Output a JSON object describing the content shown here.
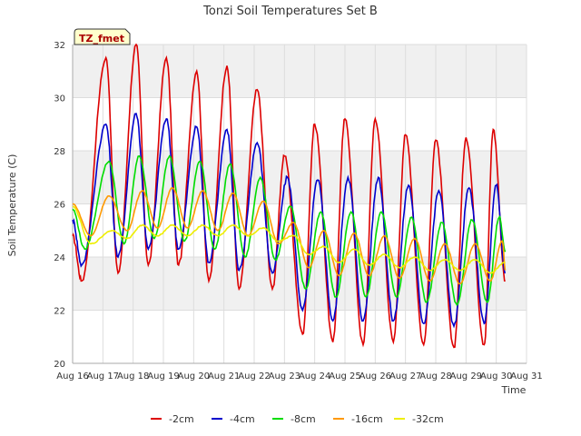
{
  "chart_data": {
    "type": "line",
    "title": "Tonzi Soil Temperatures Set B",
    "xlabel": "Time",
    "ylabel": "Soil Temperature (C)",
    "annotation": "TZ_fmet",
    "xlim": [
      16,
      31
    ],
    "ylim": [
      20,
      32
    ],
    "x_ticks": [
      16,
      17,
      18,
      19,
      20,
      21,
      22,
      23,
      24,
      25,
      26,
      27,
      28,
      29,
      30,
      31
    ],
    "x_tick_labels": [
      "Aug 16",
      "Aug 17",
      "Aug 18",
      "Aug 19",
      "Aug 20",
      "Aug 21",
      "Aug 22",
      "Aug 23",
      "Aug 24",
      "Aug 25",
      "Aug 26",
      "Aug 27",
      "Aug 28",
      "Aug 29",
      "Aug 30",
      "Aug 31"
    ],
    "y_ticks": [
      20,
      22,
      24,
      26,
      28,
      30,
      32
    ],
    "grid": true,
    "legend_position": "bottom",
    "series": [
      {
        "name": "-2cm",
        "color": "#dd0000",
        "peaks": [
          [
            17.1,
            31.5
          ],
          [
            18.1,
            32.0
          ],
          [
            19.1,
            31.5
          ],
          [
            20.1,
            31.0
          ],
          [
            21.1,
            31.2
          ],
          [
            22.1,
            30.3
          ],
          [
            23.0,
            27.8
          ],
          [
            24.0,
            29.0
          ],
          [
            25.0,
            29.2
          ],
          [
            26.0,
            29.2
          ],
          [
            27.0,
            28.6
          ],
          [
            28.0,
            28.4
          ],
          [
            29.0,
            28.5
          ],
          [
            29.9,
            28.8
          ]
        ],
        "troughs": [
          [
            16.0,
            24.8
          ],
          [
            16.3,
            23.1
          ],
          [
            17.5,
            23.4
          ],
          [
            18.5,
            23.7
          ],
          [
            19.5,
            23.7
          ],
          [
            20.5,
            23.1
          ],
          [
            21.5,
            22.8
          ],
          [
            22.6,
            22.8
          ],
          [
            23.6,
            21.1
          ],
          [
            24.6,
            20.8
          ],
          [
            25.6,
            20.7
          ],
          [
            26.6,
            20.8
          ],
          [
            27.6,
            20.7
          ],
          [
            28.6,
            20.6
          ],
          [
            29.6,
            20.7
          ],
          [
            30.3,
            23.1
          ]
        ]
      },
      {
        "name": "-4cm",
        "color": "#0000cc",
        "peaks": [
          [
            17.1,
            29.0
          ],
          [
            18.1,
            29.4
          ],
          [
            19.1,
            29.2
          ],
          [
            20.1,
            28.9
          ],
          [
            21.1,
            28.8
          ],
          [
            22.1,
            28.3
          ],
          [
            23.1,
            27.0
          ],
          [
            24.1,
            26.9
          ],
          [
            25.1,
            27.0
          ],
          [
            26.1,
            27.0
          ],
          [
            27.1,
            26.7
          ],
          [
            28.1,
            26.5
          ],
          [
            29.1,
            26.6
          ],
          [
            30.0,
            26.7
          ]
        ],
        "troughs": [
          [
            16.0,
            25.4
          ],
          [
            16.3,
            23.7
          ],
          [
            17.5,
            24.0
          ],
          [
            18.5,
            24.3
          ],
          [
            19.5,
            24.3
          ],
          [
            20.5,
            23.8
          ],
          [
            21.5,
            23.5
          ],
          [
            22.6,
            23.4
          ],
          [
            23.6,
            22.0
          ],
          [
            24.6,
            21.6
          ],
          [
            25.6,
            21.6
          ],
          [
            26.6,
            21.6
          ],
          [
            27.6,
            21.5
          ],
          [
            28.6,
            21.4
          ],
          [
            29.6,
            21.5
          ],
          [
            30.3,
            23.4
          ]
        ]
      },
      {
        "name": "-8cm",
        "color": "#00dd00",
        "peaks": [
          [
            17.2,
            27.6
          ],
          [
            18.2,
            27.8
          ],
          [
            19.2,
            27.8
          ],
          [
            20.2,
            27.6
          ],
          [
            21.2,
            27.5
          ],
          [
            22.2,
            27.0
          ],
          [
            23.2,
            25.9
          ],
          [
            24.2,
            25.7
          ],
          [
            25.2,
            25.7
          ],
          [
            26.2,
            25.7
          ],
          [
            27.2,
            25.5
          ],
          [
            28.2,
            25.3
          ],
          [
            29.2,
            25.4
          ],
          [
            30.1,
            25.5
          ]
        ],
        "troughs": [
          [
            16.0,
            25.8
          ],
          [
            16.4,
            24.3
          ],
          [
            17.7,
            24.5
          ],
          [
            18.7,
            24.7
          ],
          [
            19.7,
            24.6
          ],
          [
            20.7,
            24.3
          ],
          [
            21.7,
            24.0
          ],
          [
            22.7,
            23.9
          ],
          [
            23.7,
            22.8
          ],
          [
            24.7,
            22.5
          ],
          [
            25.7,
            22.5
          ],
          [
            26.7,
            22.5
          ],
          [
            27.7,
            22.3
          ],
          [
            28.7,
            22.2
          ],
          [
            29.7,
            22.3
          ],
          [
            30.3,
            24.2
          ]
        ]
      },
      {
        "name": "-16cm",
        "color": "#ff9900",
        "peaks": [
          [
            16.0,
            26.0
          ],
          [
            17.2,
            26.3
          ],
          [
            18.3,
            26.5
          ],
          [
            19.3,
            26.6
          ],
          [
            20.3,
            26.5
          ],
          [
            21.3,
            26.4
          ],
          [
            22.3,
            26.1
          ],
          [
            23.3,
            25.3
          ],
          [
            24.3,
            25.0
          ],
          [
            25.3,
            24.9
          ],
          [
            26.3,
            24.8
          ],
          [
            27.3,
            24.7
          ],
          [
            28.3,
            24.5
          ],
          [
            29.3,
            24.5
          ],
          [
            30.2,
            24.6
          ]
        ],
        "troughs": [
          [
            16.6,
            24.8
          ],
          [
            17.8,
            25.0
          ],
          [
            18.8,
            25.1
          ],
          [
            19.8,
            25.1
          ],
          [
            20.8,
            25.0
          ],
          [
            21.8,
            24.8
          ],
          [
            22.8,
            24.5
          ],
          [
            23.8,
            23.6
          ],
          [
            24.8,
            23.3
          ],
          [
            25.8,
            23.3
          ],
          [
            26.8,
            23.2
          ],
          [
            27.8,
            23.1
          ],
          [
            28.8,
            23.0
          ],
          [
            29.8,
            23.1
          ],
          [
            30.3,
            23.5
          ]
        ]
      },
      {
        "name": "-32cm",
        "color": "#eeee00",
        "peaks": [
          [
            16.0,
            25.9
          ],
          [
            17.3,
            25.0
          ],
          [
            18.3,
            25.2
          ],
          [
            19.3,
            25.2
          ],
          [
            20.3,
            25.2
          ],
          [
            21.3,
            25.2
          ],
          [
            22.3,
            25.1
          ],
          [
            23.3,
            24.8
          ],
          [
            24.3,
            24.4
          ],
          [
            25.3,
            24.3
          ],
          [
            26.3,
            24.1
          ],
          [
            27.3,
            24.0
          ],
          [
            28.3,
            23.9
          ],
          [
            29.3,
            23.9
          ],
          [
            30.3,
            23.8
          ]
        ],
        "troughs": [
          [
            16.6,
            24.5
          ],
          [
            17.8,
            24.7
          ],
          [
            18.8,
            24.8
          ],
          [
            19.8,
            24.8
          ],
          [
            20.8,
            24.8
          ],
          [
            21.8,
            24.8
          ],
          [
            22.8,
            24.6
          ],
          [
            23.8,
            24.1
          ],
          [
            24.8,
            23.8
          ],
          [
            25.8,
            23.7
          ],
          [
            26.8,
            23.6
          ],
          [
            27.8,
            23.5
          ],
          [
            28.8,
            23.5
          ],
          [
            29.8,
            23.4
          ]
        ]
      }
    ]
  }
}
